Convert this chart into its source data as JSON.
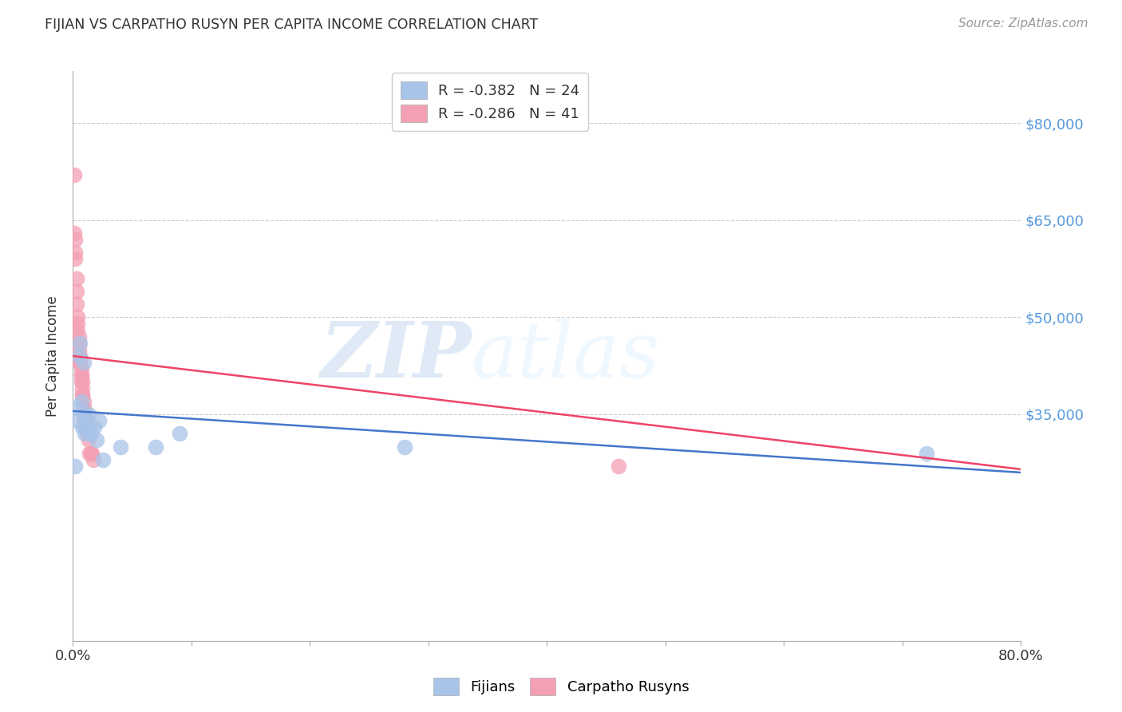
{
  "title": "FIJIAN VS CARPATHO RUSYN PER CAPITA INCOME CORRELATION CHART",
  "source": "Source: ZipAtlas.com",
  "ylabel": "Per Capita Income",
  "xlim": [
    0.0,
    0.8
  ],
  "ylim": [
    0,
    88000
  ],
  "watermark_zip": "ZIP",
  "watermark_atlas": "atlas",
  "legend_fijian_r": "R = -0.382",
  "legend_fijian_n": "N = 24",
  "legend_rusyn_r": "R = -0.286",
  "legend_rusyn_n": "N = 41",
  "fijian_color": "#a8c4e8",
  "rusyn_color": "#f4a0b4",
  "fijian_line_color": "#4477cc",
  "rusyn_line_color": "#ee4466",
  "right_axis_color": "#5599dd",
  "background_color": "#ffffff",
  "grid_color": "#cccccc",
  "fijian_scatter_x": [
    0.002,
    0.003,
    0.004,
    0.005,
    0.006,
    0.007,
    0.008,
    0.009,
    0.01,
    0.01,
    0.011,
    0.012,
    0.013,
    0.014,
    0.015,
    0.018,
    0.02,
    0.022,
    0.025,
    0.04,
    0.07,
    0.09,
    0.28,
    0.72
  ],
  "fijian_scatter_y": [
    27000,
    36000,
    34000,
    44000,
    46000,
    37000,
    33000,
    43000,
    32000,
    35000,
    34000,
    33000,
    35000,
    32000,
    32000,
    33000,
    31000,
    34000,
    28000,
    30000,
    30000,
    32000,
    30000,
    29000
  ],
  "rusyn_scatter_x": [
    0.001,
    0.001,
    0.002,
    0.002,
    0.002,
    0.003,
    0.003,
    0.003,
    0.004,
    0.004,
    0.004,
    0.005,
    0.005,
    0.005,
    0.006,
    0.006,
    0.006,
    0.007,
    0.007,
    0.007,
    0.007,
    0.008,
    0.008,
    0.008,
    0.008,
    0.009,
    0.009,
    0.009,
    0.01,
    0.01,
    0.01,
    0.011,
    0.011,
    0.012,
    0.012,
    0.013,
    0.014,
    0.015,
    0.016,
    0.017,
    0.46
  ],
  "rusyn_scatter_y": [
    72000,
    63000,
    62000,
    60000,
    59000,
    56000,
    54000,
    52000,
    50000,
    49000,
    48000,
    47000,
    46000,
    45000,
    44000,
    43000,
    43000,
    42000,
    41000,
    41000,
    40000,
    40000,
    39000,
    38000,
    38000,
    37000,
    36000,
    35000,
    35000,
    34000,
    33000,
    33000,
    34000,
    33000,
    32000,
    31000,
    29000,
    29000,
    29000,
    28000,
    27000
  ],
  "fijian_line_x0": 0.0,
  "fijian_line_x1": 0.8,
  "fijian_line_y0": 35500,
  "fijian_line_y1": 26000,
  "rusyn_line_x0": 0.0,
  "rusyn_line_x1": 0.8,
  "rusyn_line_y0": 44000,
  "rusyn_line_y1": 26500
}
